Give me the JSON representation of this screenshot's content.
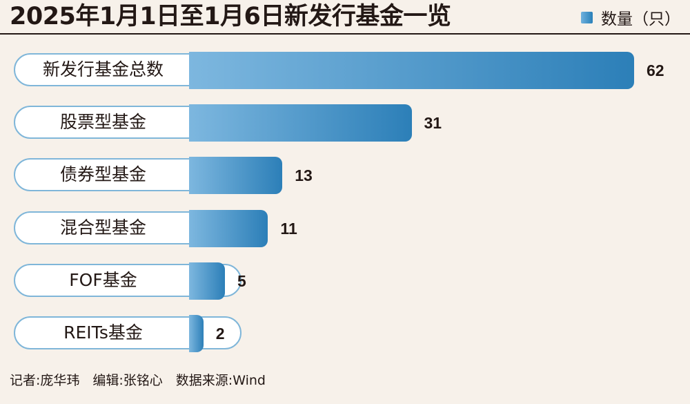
{
  "chart_data": {
    "type": "bar",
    "orientation": "horizontal",
    "title": "2025年1月1日至1月6日新发行基金一览",
    "legend": "数量（只）",
    "legend_position": "top-right",
    "categories": [
      "新发行基金总数",
      "股票型基金",
      "债券型基金",
      "混合型基金",
      "FOF基金",
      "REITs基金"
    ],
    "values": [
      62,
      31,
      13,
      11,
      5,
      2
    ],
    "colors": {
      "bar_start": "#7db7df",
      "bar_end": "#2c7fb8",
      "pill_border": "#7fb6d9"
    }
  },
  "footer": "记者:庞华玮　编辑:张铭心　数据来源:Wind"
}
